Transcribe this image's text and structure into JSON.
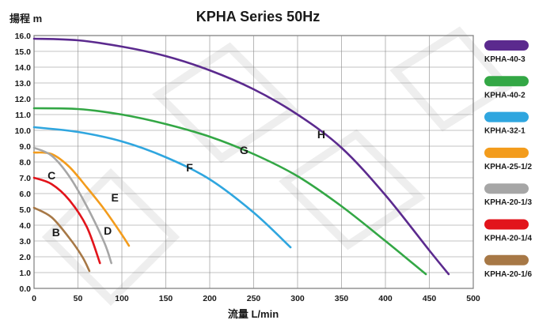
{
  "chart_data": {
    "type": "line",
    "title": "KPHA Series  50Hz",
    "ylabel": "揚程 m",
    "xlabel": "流量 L/min",
    "xlim": [
      0,
      500
    ],
    "ylim": [
      0,
      16
    ],
    "x_ticks": [
      "0",
      "50",
      "100",
      "150",
      "200",
      "250",
      "300",
      "350",
      "400",
      "450",
      "500"
    ],
    "y_ticks": [
      "0.0",
      "1.0",
      "2.0",
      "3.0",
      "4.0",
      "5.0",
      "6.0",
      "7.0",
      "8.0",
      "9.0",
      "10.0",
      "11.0",
      "12.0",
      "13.0",
      "14.0",
      "15.0",
      "16.0"
    ],
    "grid": true,
    "legend_position": "right",
    "series": [
      {
        "name": "KPHA-40-3",
        "curve_label": "H",
        "color": "#5b2a8e",
        "points": [
          [
            0,
            15.8
          ],
          [
            50,
            15.7
          ],
          [
            100,
            15.3
          ],
          [
            150,
            14.7
          ],
          [
            200,
            13.8
          ],
          [
            250,
            12.6
          ],
          [
            300,
            11.0
          ],
          [
            350,
            8.9
          ],
          [
            400,
            5.9
          ],
          [
            450,
            2.4
          ],
          [
            472,
            0.9
          ]
        ],
        "label_at": [
          327,
          9.5
        ]
      },
      {
        "name": "KPHA-40-2",
        "curve_label": "G",
        "color": "#33a745",
        "points": [
          [
            0,
            11.4
          ],
          [
            50,
            11.35
          ],
          [
            100,
            11.0
          ],
          [
            150,
            10.4
          ],
          [
            200,
            9.6
          ],
          [
            250,
            8.5
          ],
          [
            300,
            7.1
          ],
          [
            350,
            5.2
          ],
          [
            400,
            3.0
          ],
          [
            446,
            0.9
          ]
        ],
        "label_at": [
          239,
          8.5
        ]
      },
      {
        "name": "KPHA-32-1",
        "curve_label": "F",
        "color": "#2fa6df",
        "points": [
          [
            0,
            10.2
          ],
          [
            50,
            9.9
          ],
          [
            100,
            9.3
          ],
          [
            150,
            8.3
          ],
          [
            200,
            6.9
          ],
          [
            250,
            4.8
          ],
          [
            292,
            2.6
          ]
        ],
        "label_at": [
          177,
          7.4
        ]
      },
      {
        "name": "KPHA-25-1/2",
        "curve_label": "E",
        "color": "#f39c1c",
        "points": [
          [
            0,
            8.6
          ],
          [
            20,
            8.5
          ],
          [
            40,
            7.7
          ],
          [
            60,
            6.4
          ],
          [
            80,
            5.0
          ],
          [
            100,
            3.4
          ],
          [
            108,
            2.7
          ]
        ],
        "label_at": [
          92,
          5.5
        ]
      },
      {
        "name": "KPHA-20-1/3",
        "curve_label": "D",
        "color": "#a6a6a6",
        "points": [
          [
            0,
            8.9
          ],
          [
            20,
            8.4
          ],
          [
            40,
            7.1
          ],
          [
            60,
            5.2
          ],
          [
            80,
            2.9
          ],
          [
            88,
            1.6
          ]
        ],
        "label_at": [
          84,
          3.4
        ]
      },
      {
        "name": "KPHA-20-1/4",
        "curve_label": "C",
        "color": "#e2141b",
        "points": [
          [
            0,
            7.0
          ],
          [
            20,
            6.6
          ],
          [
            40,
            5.6
          ],
          [
            60,
            3.9
          ],
          [
            75,
            1.6
          ]
        ],
        "label_at": [
          20,
          6.9
        ]
      },
      {
        "name": "KPHA-20-1/6",
        "curve_label": "B",
        "color": "#a77846",
        "points": [
          [
            0,
            5.1
          ],
          [
            20,
            4.5
          ],
          [
            40,
            3.2
          ],
          [
            55,
            2.0
          ],
          [
            63,
            1.1
          ]
        ],
        "label_at": [
          25,
          3.3
        ]
      }
    ]
  }
}
